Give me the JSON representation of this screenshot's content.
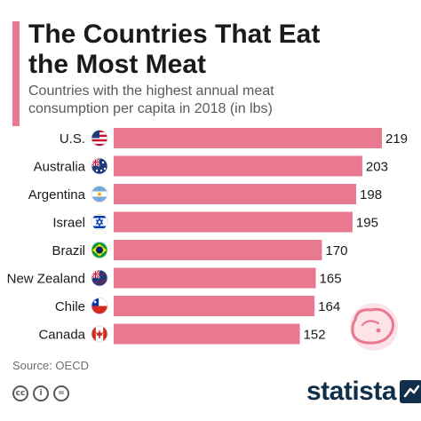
{
  "header": {
    "title_line1": "The Countries That Eat",
    "title_line2": "the Most Meat",
    "subtitle_line1": "Countries with the highest annual meat",
    "subtitle_line2": "consumption per capita in 2018 (in lbs)"
  },
  "colors": {
    "accent": "#e8798f",
    "bar": "#e8798f",
    "brand": "#0f2f4a"
  },
  "chart_data": {
    "type": "bar",
    "orientation": "horizontal",
    "categories": [
      "U.S.",
      "Australia",
      "Argentina",
      "Israel",
      "Brazil",
      "New Zealand",
      "Chile",
      "Canada"
    ],
    "values": [
      219,
      203,
      198,
      195,
      170,
      165,
      164,
      152
    ],
    "flags": [
      "us-flag-icon",
      "australia-flag-icon",
      "argentina-flag-icon",
      "israel-flag-icon",
      "brazil-flag-icon",
      "new-zealand-flag-icon",
      "chile-flag-icon",
      "canada-flag-icon"
    ],
    "title": "The Countries That Eat the Most Meat",
    "subtitle": "Countries with the highest annual meat consumption per capita in 2018 (in lbs)",
    "xlim": [
      0,
      219
    ],
    "grid": false,
    "data_labels": "outside-end"
  },
  "footer": {
    "source": "Source: OECD",
    "brand": "statista",
    "license_icons": [
      "cc",
      "i",
      "="
    ]
  },
  "decor": {
    "icon": "steak-icon"
  }
}
